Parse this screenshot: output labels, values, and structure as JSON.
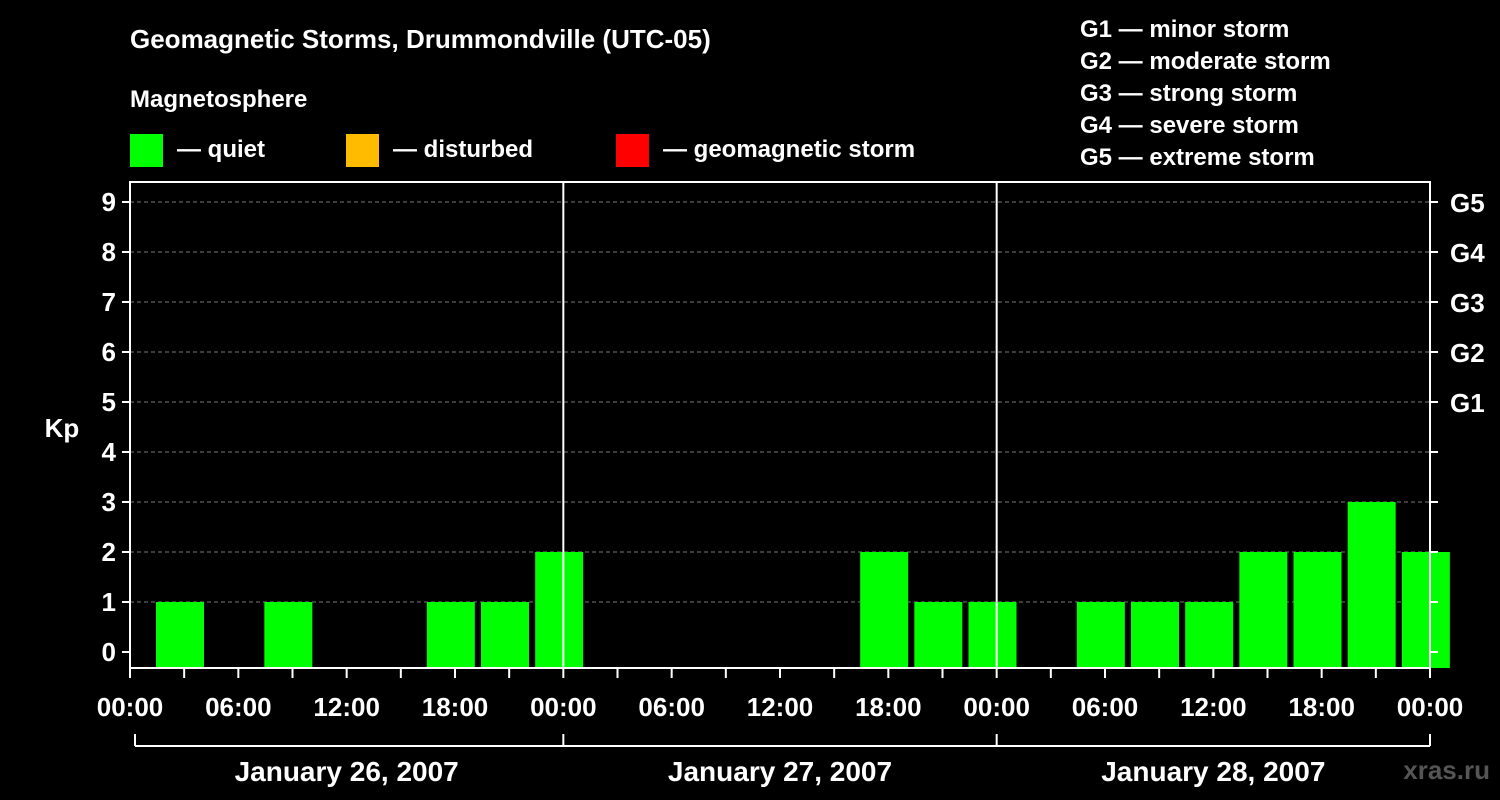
{
  "header": {
    "title": "Geomagnetic Storms, Drummondville (UTC-05)",
    "subtitle": "Magnetosphere"
  },
  "legend": [
    {
      "label": "— quiet",
      "color": "#00ff00"
    },
    {
      "label": "— disturbed",
      "color": "#ffbb00"
    },
    {
      "label": "— geomagnetic storm",
      "color": "#ff0000"
    }
  ],
  "storm_scale": [
    "G1 — minor storm",
    "G2 — moderate storm",
    "G3 — strong storm",
    "G4 — severe storm",
    "G5 — extreme storm"
  ],
  "watermark": "xras.ru",
  "chart_data": {
    "type": "bar",
    "ylabel": "Kp",
    "ylim": [
      0,
      9
    ],
    "y_ticks": [
      0,
      1,
      2,
      3,
      4,
      5,
      6,
      7,
      8,
      9
    ],
    "right_axis_labels": [
      {
        "kp": 5,
        "label": "G1"
      },
      {
        "kp": 6,
        "label": "G2"
      },
      {
        "kp": 7,
        "label": "G3"
      },
      {
        "kp": 8,
        "label": "G4"
      },
      {
        "kp": 9,
        "label": "G5"
      }
    ],
    "x_tick_labels": [
      "00:00",
      "06:00",
      "12:00",
      "18:00",
      "00:00",
      "06:00",
      "12:00",
      "18:00",
      "00:00",
      "06:00",
      "12:00",
      "18:00",
      "00:00"
    ],
    "days": [
      "January 26, 2007",
      "January 27, 2007",
      "January 28, 2007"
    ],
    "interval_hours": 3,
    "series": [
      {
        "values": [
          1,
          0,
          1,
          0,
          0,
          1,
          1,
          2,
          0,
          0,
          0,
          0,
          0,
          2,
          1,
          1,
          0,
          1,
          1,
          1,
          2,
          2,
          3,
          2
        ]
      }
    ],
    "grid": "dashed horizontal at each Kp",
    "thresholds": {
      "quiet_max": 3,
      "disturbed_max": 4
    },
    "colors": {
      "quiet": "#00ff00",
      "disturbed": "#ffbb00",
      "storm": "#ff0000"
    }
  }
}
